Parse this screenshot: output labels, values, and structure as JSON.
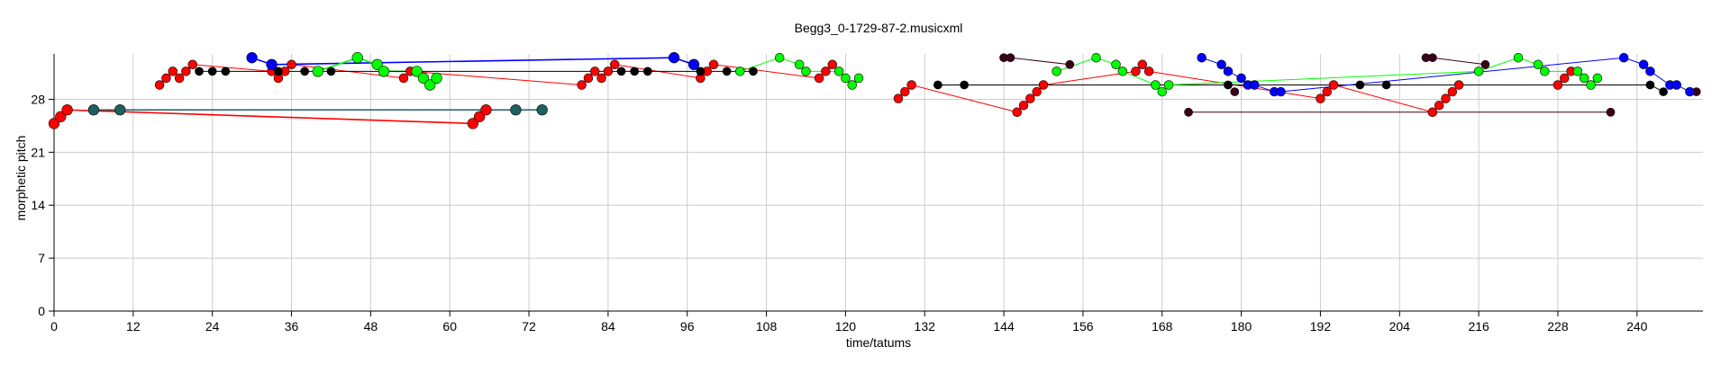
{
  "chart_data": {
    "type": "scatter",
    "title": "Begg3_0-1729-87-2.musicxml",
    "xlabel": "time/tatums",
    "ylabel": "morphetic pitch",
    "xlim": [
      0,
      250
    ],
    "ylim": [
      0,
      34
    ],
    "xticks": [
      0,
      12,
      24,
      36,
      48,
      60,
      72,
      84,
      96,
      108,
      120,
      132,
      144,
      156,
      168,
      180,
      192,
      204,
      216,
      228,
      240
    ],
    "yticks": [
      0,
      7,
      14,
      21,
      28
    ],
    "grid": true,
    "colors": {
      "red": "#ff0000",
      "blue": "#0000ff",
      "green": "#00ff00",
      "black": "#000000",
      "teal": "#1f5f5f",
      "maroon": "#3a001a"
    },
    "series": [
      {
        "color": "red",
        "size": 4.5,
        "points": [
          [
            0,
            24.8
          ],
          [
            1,
            25.7
          ],
          [
            2,
            26.6
          ],
          [
            63.5,
            24.8
          ],
          [
            64.5,
            25.7
          ],
          [
            65.5,
            26.6
          ]
        ],
        "links": [
          [
            0,
            1
          ],
          [
            1,
            2
          ],
          [
            2,
            3
          ],
          [
            3,
            4
          ],
          [
            4,
            5
          ]
        ]
      },
      {
        "color": "teal",
        "size": 4.5,
        "points": [
          [
            6,
            26.6
          ],
          [
            10,
            26.6
          ],
          [
            70,
            26.6
          ],
          [
            74,
            26.6
          ]
        ],
        "links": [
          [
            0,
            1
          ],
          [
            1,
            2
          ],
          [
            2,
            3
          ]
        ]
      },
      {
        "color": "red",
        "size": 3.8,
        "points": [
          [
            16,
            29.9
          ],
          [
            17,
            30.8
          ],
          [
            18,
            31.7
          ],
          [
            19,
            30.8
          ],
          [
            20,
            31.7
          ],
          [
            21,
            32.6
          ],
          [
            33,
            31.7
          ],
          [
            34,
            30.8
          ],
          [
            35,
            31.7
          ],
          [
            36,
            32.6
          ],
          [
            53,
            30.8
          ],
          [
            54,
            31.7
          ],
          [
            80,
            29.9
          ],
          [
            81,
            30.8
          ],
          [
            82,
            31.7
          ],
          [
            83,
            30.8
          ],
          [
            84,
            31.7
          ],
          [
            85,
            32.6
          ],
          [
            98,
            30.8
          ],
          [
            99,
            31.7
          ],
          [
            100,
            32.6
          ],
          [
            116,
            30.8
          ],
          [
            117,
            31.7
          ],
          [
            118,
            32.6
          ]
        ],
        "links": [
          [
            0,
            1
          ],
          [
            1,
            2
          ],
          [
            2,
            3
          ],
          [
            3,
            4
          ],
          [
            4,
            5
          ],
          [
            5,
            6
          ],
          [
            6,
            7
          ],
          [
            7,
            8
          ],
          [
            8,
            9
          ],
          [
            9,
            10
          ],
          [
            10,
            11
          ],
          [
            11,
            12
          ],
          [
            12,
            13
          ],
          [
            13,
            14
          ],
          [
            14,
            15
          ],
          [
            15,
            16
          ],
          [
            16,
            17
          ],
          [
            17,
            18
          ],
          [
            18,
            19
          ],
          [
            19,
            20
          ],
          [
            20,
            21
          ],
          [
            21,
            22
          ],
          [
            22,
            23
          ]
        ]
      },
      {
        "color": "blue",
        "size": 4.5,
        "points": [
          [
            30,
            33.5
          ],
          [
            33,
            32.6
          ],
          [
            94,
            33.5
          ],
          [
            97,
            32.6
          ]
        ],
        "links": [
          [
            0,
            1
          ],
          [
            1,
            2
          ],
          [
            2,
            3
          ]
        ]
      },
      {
        "color": "green",
        "size": 4.5,
        "points": [
          [
            40,
            31.7
          ],
          [
            46,
            33.5
          ],
          [
            49,
            32.6
          ],
          [
            50,
            31.7
          ],
          [
            55,
            31.7
          ],
          [
            56,
            30.8
          ],
          [
            57,
            29.9
          ],
          [
            58,
            30.8
          ]
        ],
        "links": [
          [
            0,
            1
          ],
          [
            1,
            2
          ],
          [
            2,
            3
          ],
          [
            3,
            4
          ],
          [
            4,
            5
          ],
          [
            5,
            6
          ],
          [
            6,
            7
          ]
        ]
      },
      {
        "color": "black",
        "size": 3.5,
        "points": [
          [
            22,
            31.7
          ],
          [
            24,
            31.7
          ],
          [
            26,
            31.7
          ],
          [
            34,
            31.7
          ],
          [
            38,
            31.7
          ],
          [
            42,
            31.7
          ],
          [
            86,
            31.7
          ],
          [
            88,
            31.7
          ],
          [
            90,
            31.7
          ],
          [
            98,
            31.7
          ],
          [
            102,
            31.7
          ],
          [
            106,
            31.7
          ]
        ],
        "links": [
          [
            0,
            1
          ],
          [
            1,
            2
          ],
          [
            2,
            3
          ],
          [
            3,
            4
          ],
          [
            4,
            5
          ],
          [
            5,
            6
          ],
          [
            6,
            7
          ],
          [
            7,
            8
          ],
          [
            8,
            9
          ],
          [
            9,
            10
          ],
          [
            10,
            11
          ]
        ]
      },
      {
        "color": "green",
        "size": 3.8,
        "points": [
          [
            104,
            31.7
          ],
          [
            110,
            33.5
          ],
          [
            113,
            32.6
          ],
          [
            114,
            31.7
          ],
          [
            119,
            31.7
          ],
          [
            120,
            30.8
          ],
          [
            121,
            29.9
          ],
          [
            122,
            30.8
          ]
        ],
        "links": [
          [
            0,
            1
          ],
          [
            1,
            2
          ],
          [
            2,
            3
          ],
          [
            3,
            4
          ],
          [
            4,
            5
          ],
          [
            5,
            6
          ],
          [
            6,
            7
          ]
        ]
      },
      {
        "color": "red",
        "size": 3.8,
        "points": [
          [
            128,
            28.1
          ],
          [
            129,
            29.0
          ],
          [
            130,
            29.9
          ],
          [
            146,
            26.3
          ],
          [
            147,
            27.2
          ],
          [
            148,
            28.1
          ],
          [
            149,
            29.0
          ],
          [
            150,
            29.9
          ],
          [
            164,
            31.7
          ],
          [
            165,
            32.6
          ],
          [
            166,
            31.7
          ],
          [
            192,
            28.1
          ],
          [
            193,
            29.0
          ],
          [
            194,
            29.9
          ],
          [
            209,
            26.3
          ],
          [
            210,
            27.2
          ],
          [
            211,
            28.1
          ],
          [
            212,
            29.0
          ],
          [
            213,
            29.9
          ],
          [
            228,
            29.9
          ],
          [
            229,
            30.8
          ],
          [
            230,
            31.7
          ]
        ],
        "links": [
          [
            0,
            1
          ],
          [
            1,
            2
          ],
          [
            2,
            3
          ],
          [
            3,
            4
          ],
          [
            4,
            5
          ],
          [
            5,
            6
          ],
          [
            6,
            7
          ],
          [
            7,
            8
          ],
          [
            8,
            9
          ],
          [
            9,
            10
          ],
          [
            10,
            11
          ],
          [
            11,
            12
          ],
          [
            12,
            13
          ],
          [
            13,
            14
          ],
          [
            14,
            15
          ],
          [
            15,
            16
          ],
          [
            16,
            17
          ],
          [
            17,
            18
          ],
          [
            18,
            19
          ],
          [
            19,
            20
          ],
          [
            20,
            21
          ]
        ]
      },
      {
        "color": "black",
        "size": 3.5,
        "points": [
          [
            134,
            29.9
          ],
          [
            138,
            29.9
          ],
          [
            178,
            29.9
          ],
          [
            182,
            29.9
          ],
          [
            198,
            29.9
          ],
          [
            202,
            29.9
          ],
          [
            242,
            29.9
          ],
          [
            244,
            29.0
          ]
        ],
        "links": [
          [
            0,
            1
          ],
          [
            1,
            2
          ],
          [
            2,
            3
          ],
          [
            3,
            4
          ],
          [
            4,
            5
          ],
          [
            5,
            6
          ],
          [
            6,
            7
          ]
        ]
      },
      {
        "color": "maroon",
        "size": 3.5,
        "points": [
          [
            144,
            33.5
          ],
          [
            145,
            33.5
          ],
          [
            154,
            32.6
          ],
          [
            172,
            26.3
          ],
          [
            179,
            29.0
          ],
          [
            208,
            33.5
          ],
          [
            209,
            33.5
          ],
          [
            217,
            32.6
          ],
          [
            236,
            26.3
          ],
          [
            249,
            29.0
          ]
        ],
        "links": [
          [
            0,
            1
          ],
          [
            1,
            2
          ],
          [
            3,
            8
          ],
          [
            5,
            6
          ],
          [
            6,
            7
          ]
        ]
      },
      {
        "color": "green",
        "size": 3.8,
        "points": [
          [
            152,
            31.7
          ],
          [
            158,
            33.5
          ],
          [
            161,
            32.6
          ],
          [
            162,
            31.7
          ],
          [
            167,
            29.9
          ],
          [
            168,
            29.0
          ],
          [
            169,
            29.9
          ],
          [
            216,
            31.7
          ],
          [
            222,
            33.5
          ],
          [
            225,
            32.6
          ],
          [
            226,
            31.7
          ],
          [
            231,
            31.7
          ],
          [
            232,
            30.8
          ],
          [
            233,
            29.9
          ],
          [
            234,
            30.8
          ]
        ],
        "links": [
          [
            0,
            1
          ],
          [
            1,
            2
          ],
          [
            2,
            3
          ],
          [
            3,
            4
          ],
          [
            4,
            5
          ],
          [
            5,
            6
          ],
          [
            6,
            7
          ],
          [
            7,
            8
          ],
          [
            8,
            9
          ],
          [
            9,
            10
          ],
          [
            10,
            11
          ],
          [
            11,
            12
          ],
          [
            12,
            13
          ],
          [
            13,
            14
          ]
        ]
      },
      {
        "color": "blue",
        "size": 3.8,
        "points": [
          [
            174,
            33.5
          ],
          [
            177,
            32.6
          ],
          [
            178,
            31.7
          ],
          [
            180,
            30.8
          ],
          [
            181,
            29.9
          ],
          [
            182,
            29.9
          ],
          [
            185,
            29.0
          ],
          [
            186,
            29.0
          ],
          [
            238,
            33.5
          ],
          [
            241,
            32.6
          ],
          [
            242,
            31.7
          ],
          [
            245,
            29.9
          ],
          [
            246,
            29.9
          ],
          [
            248,
            29.0
          ]
        ],
        "links": [
          [
            0,
            1
          ],
          [
            1,
            2
          ],
          [
            2,
            3
          ],
          [
            3,
            4
          ],
          [
            4,
            5
          ],
          [
            5,
            6
          ],
          [
            6,
            7
          ],
          [
            7,
            8
          ],
          [
            8,
            9
          ],
          [
            9,
            10
          ],
          [
            10,
            11
          ],
          [
            11,
            12
          ],
          [
            12,
            13
          ]
        ]
      }
    ]
  }
}
